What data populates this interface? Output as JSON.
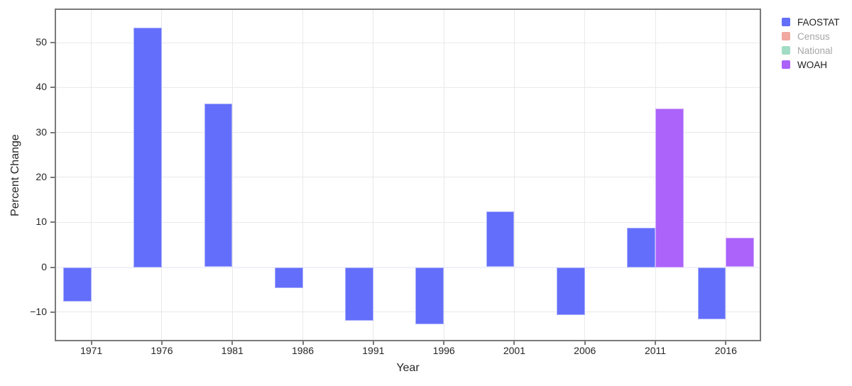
{
  "chart_data": {
    "type": "bar",
    "title": "",
    "xlabel": "Year",
    "ylabel": "Percent Change",
    "x_ticks": [
      1971,
      1976,
      1981,
      1986,
      1991,
      1996,
      2001,
      2006,
      2011,
      2016
    ],
    "y_ticks": [
      -10,
      0,
      10,
      20,
      30,
      40,
      50
    ],
    "x_range": [
      1968.5,
      2018.4
    ],
    "y_range": [
      -16.2,
      57.3
    ],
    "bar_width_years": 2,
    "grid": true,
    "legend_position": "top-right-outside",
    "series": [
      {
        "name": "FAOSTAT",
        "visible": true,
        "color_displayed": "#636efa",
        "legend_text_color": "#1f1f1f",
        "offset_years": 0,
        "x": [
          1970,
          1975,
          1980,
          1985,
          1990,
          1995,
          2000,
          2005,
          2010,
          2015
        ],
        "y": [
          -7.7,
          53.3,
          36.5,
          -4.6,
          -11.9,
          -12.8,
          12.4,
          -10.7,
          8.7,
          -11.6
        ]
      },
      {
        "name": "Census",
        "visible": false,
        "color_displayed": "#f0a8a0",
        "legend_text_color": "#a6a6a6",
        "offset_years": 0,
        "x": [],
        "y": []
      },
      {
        "name": "National",
        "visible": false,
        "color_displayed": "#a3dcc5",
        "legend_text_color": "#a6a6a6",
        "offset_years": 0,
        "x": [],
        "y": []
      },
      {
        "name": "WOAH",
        "visible": true,
        "color_displayed": "#ab63fa",
        "legend_text_color": "#1f1f1f",
        "offset_years": 2,
        "x": [
          2010,
          2015
        ],
        "y": [
          35.4,
          6.5
        ]
      }
    ],
    "palette": {
      "background": "#ffffff",
      "grid": "#e9e9e9",
      "zero_line": "#f1f1fb",
      "axis_border": "#7a7a7a",
      "tick_label": "#262626",
      "axis_title": "#262626",
      "muted_legend_text": "#a6a6a6"
    }
  }
}
